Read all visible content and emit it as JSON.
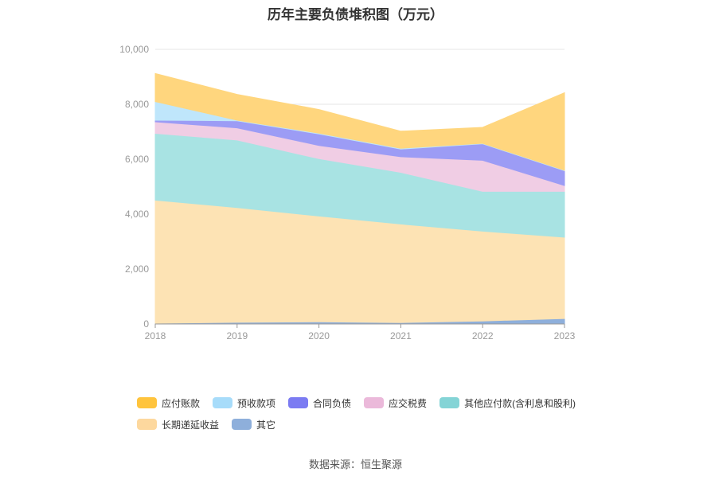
{
  "title": "历年主要负债堆积图（万元）",
  "source": "数据来源：恒生聚源",
  "chart_data": {
    "type": "area",
    "stacked": true,
    "categories": [
      "2018",
      "2019",
      "2020",
      "2021",
      "2022",
      "2023"
    ],
    "ylim": [
      0,
      10000
    ],
    "yticks": [
      0,
      2000,
      4000,
      6000,
      8000,
      10000
    ],
    "ytick_labels": [
      "0",
      "2,000",
      "4,000",
      "6,000",
      "8,000",
      "10,000"
    ],
    "grid": true,
    "legend_position": "bottom",
    "series": [
      {
        "name": "其它",
        "color": "#8EAFDB",
        "values": [
          30,
          60,
          80,
          50,
          110,
          200
        ]
      },
      {
        "name": "长期递延收益",
        "color": "#FDE3B4",
        "values": [
          4480,
          4180,
          3850,
          3590,
          3270,
          2960
        ]
      },
      {
        "name": "其他应付款(含利息和股利)",
        "color": "#A8E3E3",
        "values": [
          2430,
          2460,
          2090,
          1880,
          1450,
          1670
        ]
      },
      {
        "name": "应交税费",
        "color": "#F0CDE4",
        "values": [
          420,
          440,
          480,
          570,
          1130,
          210
        ]
      },
      {
        "name": "合同负债",
        "color": "#9C9CF5",
        "values": [
          60,
          260,
          420,
          280,
          600,
          540
        ]
      },
      {
        "name": "预收款项",
        "color": "#BFE6FB",
        "values": [
          680,
          20,
          30,
          30,
          20,
          20
        ]
      },
      {
        "name": "应付账款",
        "color": "#FFD67E",
        "values": [
          1020,
          940,
          860,
          620,
          580,
          2820
        ]
      }
    ]
  },
  "legend": {
    "rows": [
      [
        {
          "name": "应付账款",
          "color": "#FFC43D"
        },
        {
          "name": "预收款项",
          "color": "#A7DCFA"
        },
        {
          "name": "合同负债",
          "color": "#7B7BF2"
        },
        {
          "name": "应交税费",
          "color": "#EBB9DA"
        },
        {
          "name": "其他应付款(含利息和股利)",
          "color": "#84D4D6"
        }
      ],
      [
        {
          "name": "长期递延收益",
          "color": "#FDD89E"
        },
        {
          "name": "其它",
          "color": "#8EAFDB"
        }
      ]
    ]
  }
}
